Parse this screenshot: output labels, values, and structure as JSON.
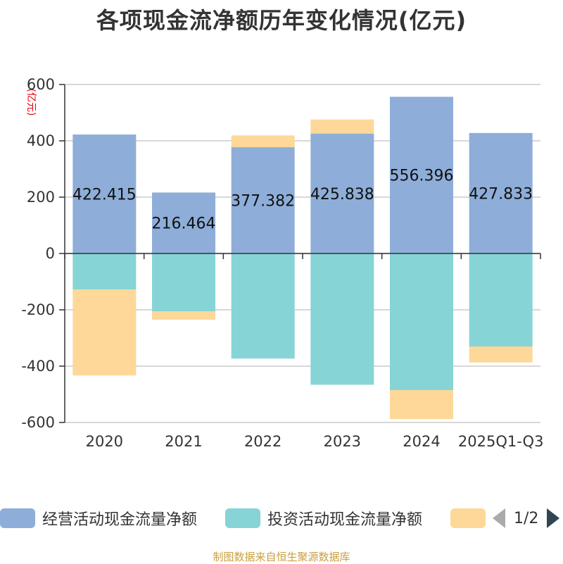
{
  "title": "各项现金流净额历年变化情况(亿元)",
  "source": "制图数据来自恒生聚源数据库",
  "chart_data": {
    "type": "bar",
    "stacked": true,
    "unit_label": "(亿元)",
    "categories": [
      "2020",
      "2021",
      "2022",
      "2023",
      "2024",
      "2025Q1-Q3"
    ],
    "ylim": [
      -600,
      600
    ],
    "yticks": [
      600,
      400,
      200,
      0,
      -200,
      -400,
      -600
    ],
    "series": [
      {
        "name": "经营活动现金流量净额",
        "color": "#8eaed9",
        "values": [
          422.415,
          216.464,
          377.382,
          425.838,
          556.396,
          427.833
        ],
        "labels": [
          "422.415",
          "216.464",
          "377.382",
          "425.838",
          "556.396",
          "427.833"
        ]
      },
      {
        "name": "投资活动现金流量净额",
        "color": "#86d4d6",
        "values": [
          -128,
          -205,
          -373,
          -466,
          -485,
          -330
        ]
      },
      {
        "name": "",
        "color": "#fdd899",
        "values": [
          -305,
          -30,
          42,
          50,
          -103,
          -57
        ]
      }
    ]
  },
  "legend": {
    "page": "1/2"
  }
}
